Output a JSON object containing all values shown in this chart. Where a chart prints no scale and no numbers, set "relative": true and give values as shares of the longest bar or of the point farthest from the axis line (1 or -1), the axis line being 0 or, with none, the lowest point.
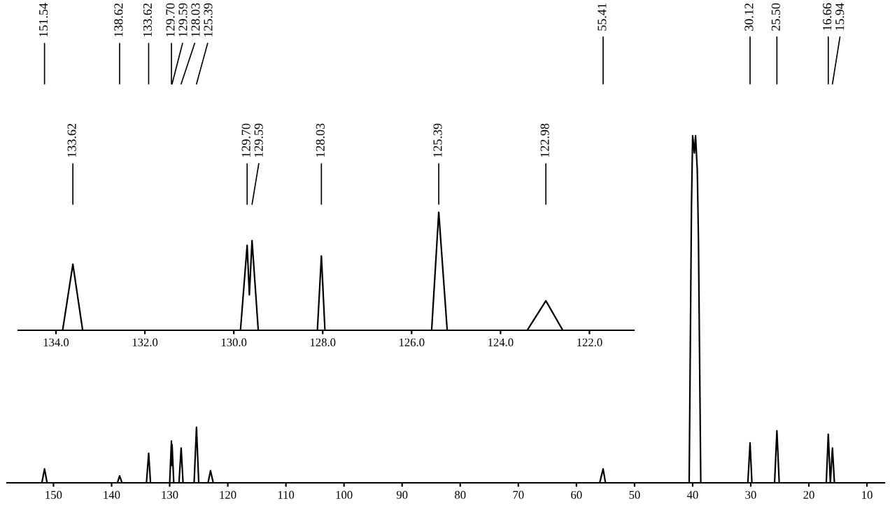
{
  "chart_data": [
    {
      "type": "line",
      "relative": true,
      "xlim": [
        158,
        7
      ],
      "xticks": [
        150,
        140,
        130,
        120,
        110,
        100,
        90,
        80,
        70,
        60,
        50,
        40,
        30,
        20,
        10
      ],
      "series": [
        {
          "color": "#000000",
          "x": [
            158,
            152.0,
            151.54,
            151.1,
            139.0,
            138.62,
            138.2,
            134.0,
            133.62,
            133.3,
            130.0,
            129.7,
            129.65,
            129.59,
            129.3,
            128.4,
            128.03,
            127.7,
            125.8,
            125.39,
            125.0,
            123.4,
            122.98,
            122.5,
            56.0,
            55.41,
            55.0,
            40.6,
            40.2,
            40.0,
            39.7,
            39.5,
            39.2,
            39.0,
            38.6,
            30.5,
            30.12,
            29.8,
            25.9,
            25.5,
            25.1,
            17.0,
            16.66,
            16.3,
            15.94,
            15.6,
            7
          ],
          "values": [
            0,
            0,
            0.04,
            0,
            0,
            0.02,
            0,
            0,
            0.085,
            0,
            0,
            0.12,
            0.05,
            0.11,
            0,
            0,
            0.1,
            0,
            0,
            0.16,
            0,
            0,
            0.035,
            0,
            0,
            0.04,
            0,
            0,
            0.8,
            1.0,
            0.95,
            1.0,
            0.9,
            0.7,
            0,
            0,
            0.115,
            0,
            0,
            0.15,
            0,
            0,
            0.14,
            0,
            0.1,
            0,
            0
          ]
        }
      ],
      "annotations": [
        {
          "text": "151.54",
          "x": 151.54
        },
        {
          "text": "138.62",
          "x": 138.62
        },
        {
          "text": "133.62",
          "x": 133.62
        },
        {
          "text": "129.70",
          "x": 129.7
        },
        {
          "text": "129.59",
          "x": 129.59
        },
        {
          "text": "128.03",
          "x": 128.03
        },
        {
          "text": "125.39",
          "x": 125.39
        },
        {
          "text": "55.41",
          "x": 55.41
        },
        {
          "text": "30.12",
          "x": 30.12
        },
        {
          "text": "25.50",
          "x": 25.5
        },
        {
          "text": "16.66",
          "x": 16.66
        },
        {
          "text": "15.94",
          "x": 15.94
        }
      ]
    },
    {
      "type": "line",
      "relative": true,
      "xlim": [
        134.85,
        121.0
      ],
      "xticks": [
        {
          "value": 134,
          "label": "134.0"
        },
        {
          "value": 132,
          "label": "132.0"
        },
        {
          "value": 130,
          "label": "130.0"
        },
        {
          "value": 128,
          "label": "128.0"
        },
        {
          "value": 126,
          "label": "126.0"
        },
        {
          "value": 124,
          "label": "124.0"
        },
        {
          "value": 122,
          "label": "122.0"
        }
      ],
      "series": [
        {
          "color": "#000000",
          "x": [
            134.85,
            133.85,
            133.62,
            133.4,
            129.85,
            129.7,
            129.65,
            129.59,
            129.45,
            128.12,
            128.03,
            127.95,
            125.55,
            125.39,
            125.2,
            123.4,
            122.98,
            122.6,
            121.0
          ],
          "values": [
            0,
            0,
            0.56,
            0,
            0,
            0.72,
            0.3,
            0.76,
            0,
            0,
            0.63,
            0,
            0,
            1.0,
            0,
            0,
            0.25,
            0,
            0
          ]
        }
      ],
      "annotations": [
        {
          "text": "133.62",
          "x": 133.62
        },
        {
          "text": "129.70",
          "x": 129.7
        },
        {
          "text": "129.59",
          "x": 129.59
        },
        {
          "text": "128.03",
          "x": 128.03
        },
        {
          "text": "125.39",
          "x": 125.39
        },
        {
          "text": "122.98",
          "x": 122.98
        }
      ]
    }
  ]
}
